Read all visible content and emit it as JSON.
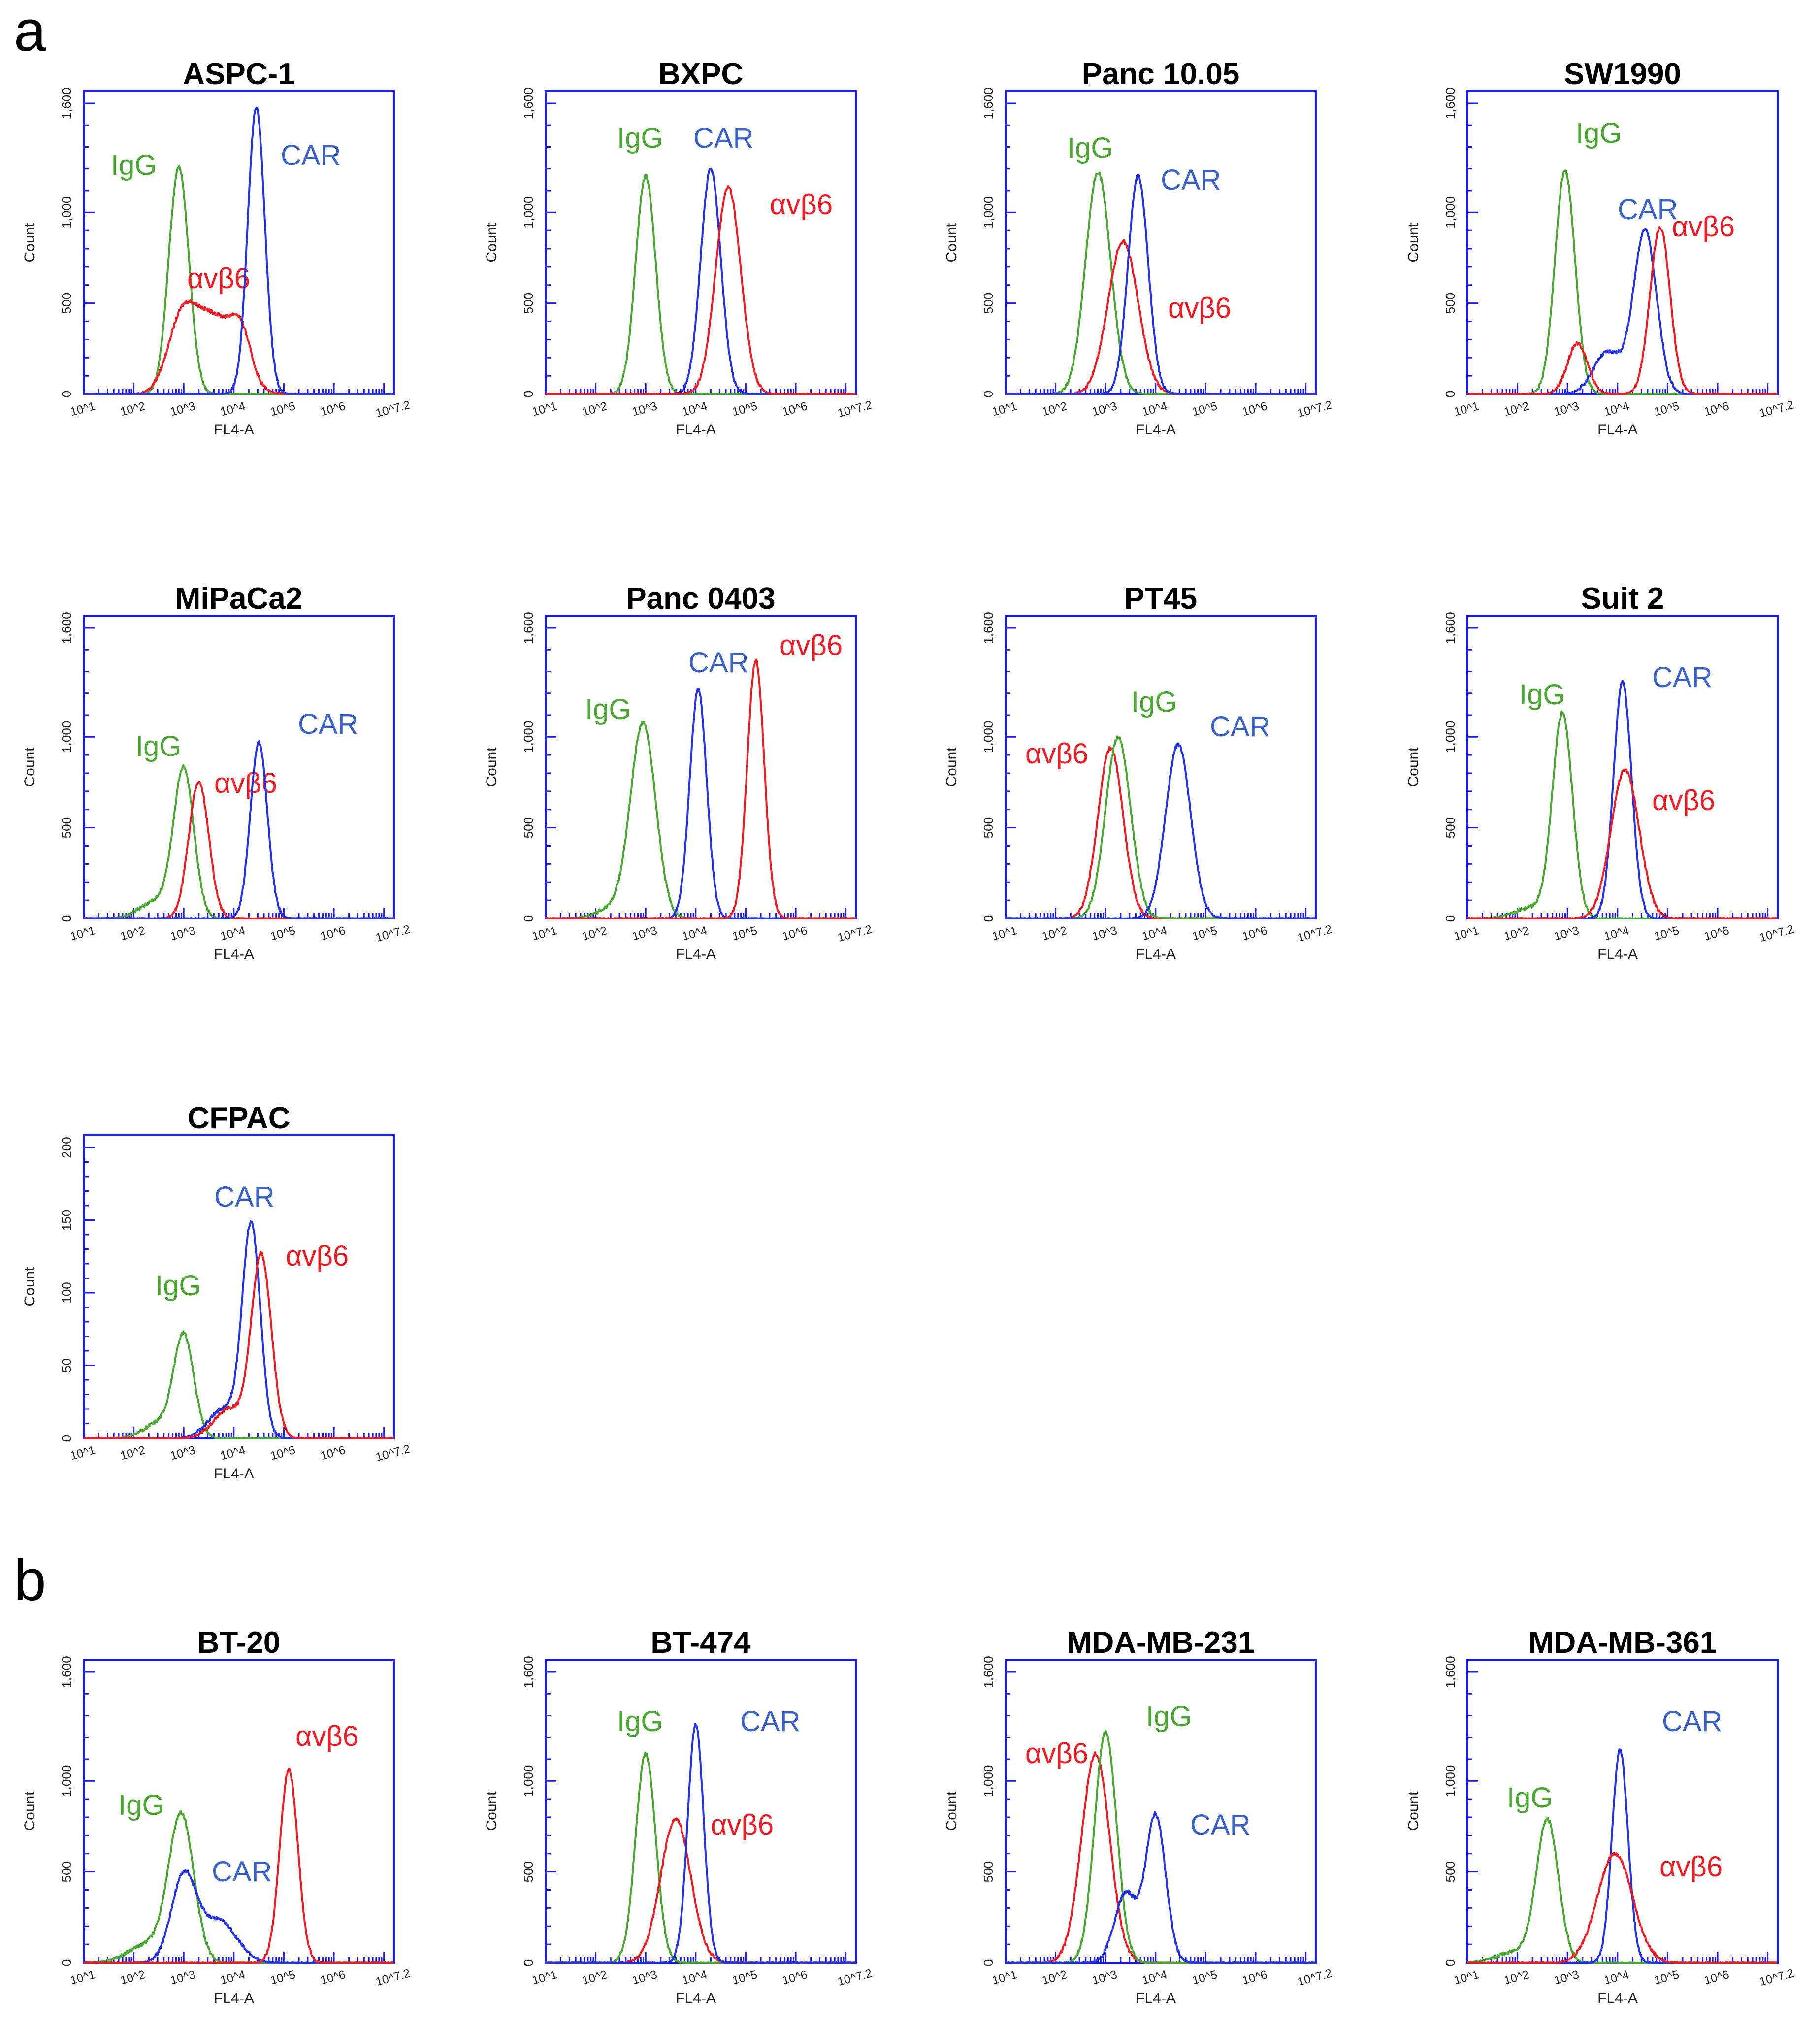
{
  "panels": [
    {
      "key": "a",
      "label": "a"
    },
    {
      "key": "b",
      "label": "b"
    }
  ],
  "colors": {
    "IgG": "#4aa832",
    "CAR": "#2433e6",
    "avb6": "#ee1c24",
    "CAR_label": "#3a62c8",
    "frame": "#1a1aff"
  },
  "chart_data": [
    {
      "type": "line",
      "panel": "a",
      "title": "ASPC-1",
      "xlabel": "FL4-A",
      "ylabel": "Count",
      "xticks": [
        "10^1",
        "10^2",
        "10^3",
        "10^4",
        "10^5",
        "10^6",
        "10^7.2"
      ],
      "xlim": [
        1,
        7.2
      ],
      "yticks": [
        "0",
        "500",
        "1,000",
        "1,600"
      ],
      "ylim": [
        0,
        1600
      ],
      "series": [
        {
          "name": "IgG",
          "label": "IgG",
          "components": [
            [
              2.9,
              1250,
              0.2
            ]
          ]
        },
        {
          "name": "avb6",
          "label": "αvβ6",
          "components": [
            [
              2.95,
              350,
              0.28
            ],
            [
              3.6,
              420,
              0.42
            ],
            [
              4.15,
              230,
              0.2
            ]
          ]
        },
        {
          "name": "CAR",
          "label": "CAR",
          "components": [
            [
              4.45,
              1580,
              0.17
            ]
          ]
        }
      ]
    },
    {
      "type": "line",
      "panel": "a",
      "title": "BXPC",
      "xlabel": "FL4-A",
      "ylabel": "Count",
      "xticks": [
        "10^1",
        "10^2",
        "10^3",
        "10^4",
        "10^5",
        "10^6",
        "10^7.2"
      ],
      "xlim": [
        1,
        7.2
      ],
      "yticks": [
        "0",
        "500",
        "1,000",
        "1,600"
      ],
      "ylim": [
        0,
        1600
      ],
      "series": [
        {
          "name": "IgG",
          "label": "IgG",
          "components": [
            [
              3.0,
              1200,
              0.2
            ]
          ]
        },
        {
          "name": "CAR",
          "label": "CAR",
          "components": [
            [
              4.3,
              1240,
              0.2
            ]
          ]
        },
        {
          "name": "avb6",
          "label": "αvβ6",
          "components": [
            [
              4.65,
              1140,
              0.25
            ]
          ]
        }
      ]
    },
    {
      "type": "line",
      "panel": "a",
      "title": "Panc 10.05",
      "xlabel": "FL4-A",
      "ylabel": "Count",
      "xticks": [
        "10^1",
        "10^2",
        "10^3",
        "10^4",
        "10^5",
        "10^6",
        "10^7.2"
      ],
      "xlim": [
        1,
        7.2
      ],
      "yticks": [
        "0",
        "500",
        "1,000",
        "1,600"
      ],
      "ylim": [
        0,
        1600
      ],
      "series": [
        {
          "name": "IgG",
          "label": "IgG",
          "components": [
            [
              2.85,
              1220,
              0.25
            ]
          ]
        },
        {
          "name": "avb6",
          "label": "αvβ6",
          "components": [
            [
              3.35,
              840,
              0.3
            ]
          ]
        },
        {
          "name": "CAR",
          "label": "CAR",
          "components": [
            [
              3.65,
              1200,
              0.2
            ]
          ]
        }
      ]
    },
    {
      "type": "line",
      "panel": "a",
      "title": "SW1990",
      "xlabel": "FL4-A",
      "ylabel": "Count",
      "xticks": [
        "10^1",
        "10^2",
        "10^3",
        "10^4",
        "10^5",
        "10^6",
        "10^7.2"
      ],
      "xlim": [
        1,
        7.2
      ],
      "yticks": [
        "0",
        "500",
        "1,000",
        "1,600"
      ],
      "ylim": [
        0,
        1600
      ],
      "series": [
        {
          "name": "IgG",
          "label": "IgG",
          "components": [
            [
              2.95,
              1230,
              0.2
            ]
          ]
        },
        {
          "name": "CAR",
          "label": "CAR",
          "components": [
            [
              4.55,
              900,
              0.23
            ],
            [
              3.8,
              230,
              0.28
            ]
          ]
        },
        {
          "name": "avb6",
          "label": "αvβ6",
          "components": [
            [
              4.85,
              920,
              0.2
            ],
            [
              3.2,
              280,
              0.2
            ]
          ]
        }
      ]
    },
    {
      "type": "line",
      "panel": "a",
      "title": "MiPaCa2",
      "xlabel": "FL4-A",
      "ylabel": "Count",
      "xticks": [
        "10^1",
        "10^2",
        "10^3",
        "10^4",
        "10^5",
        "10^6",
        "10^7.2"
      ],
      "xlim": [
        1,
        7.2
      ],
      "yticks": [
        "0",
        "500",
        "1,000",
        "1,600"
      ],
      "ylim": [
        0,
        1600
      ],
      "series": [
        {
          "name": "IgG",
          "label": "IgG",
          "components": [
            [
              3.0,
              800,
              0.2
            ],
            [
              2.5,
              100,
              0.35
            ]
          ]
        },
        {
          "name": "avb6",
          "label": "αvβ6",
          "components": [
            [
              3.3,
              750,
              0.2
            ]
          ]
        },
        {
          "name": "CAR",
          "label": "CAR",
          "components": [
            [
              4.5,
              970,
              0.17
            ]
          ]
        }
      ]
    },
    {
      "type": "line",
      "panel": "a",
      "title": "Panc 0403",
      "xlabel": "FL4-A",
      "ylabel": "Count",
      "xticks": [
        "10^1",
        "10^2",
        "10^3",
        "10^4",
        "10^5",
        "10^6",
        "10^7.2"
      ],
      "xlim": [
        1,
        7.2
      ],
      "yticks": [
        "0",
        "500",
        "1,000",
        "1,600"
      ],
      "ylim": [
        0,
        1600
      ],
      "series": [
        {
          "name": "IgG",
          "label": "IgG",
          "components": [
            [
              2.95,
              1060,
              0.25
            ],
            [
              2.4,
              60,
              0.35
            ]
          ]
        },
        {
          "name": "CAR",
          "label": "CAR",
          "components": [
            [
              4.05,
              1260,
              0.17
            ]
          ]
        },
        {
          "name": "avb6",
          "label": "αvβ6",
          "components": [
            [
              5.2,
              1420,
              0.17
            ]
          ]
        }
      ]
    },
    {
      "type": "line",
      "panel": "a",
      "title": "PT45",
      "xlabel": "FL4-A",
      "ylabel": "Count",
      "xticks": [
        "10^1",
        "10^2",
        "10^3",
        "10^4",
        "10^5",
        "10^6",
        "10^7.2"
      ],
      "xlim": [
        1,
        7.2
      ],
      "yticks": [
        "0",
        "500",
        "1,000",
        "1,600"
      ],
      "ylim": [
        0,
        1600
      ],
      "series": [
        {
          "name": "avb6",
          "label": "αvβ6",
          "components": [
            [
              3.1,
              940,
              0.25
            ]
          ]
        },
        {
          "name": "IgG",
          "label": "IgG",
          "components": [
            [
              3.25,
              1000,
              0.25
            ]
          ]
        },
        {
          "name": "CAR",
          "label": "CAR",
          "components": [
            [
              4.45,
              960,
              0.25
            ]
          ]
        }
      ]
    },
    {
      "type": "line",
      "panel": "a",
      "title": "Suit 2",
      "xlabel": "FL4-A",
      "ylabel": "Count",
      "xticks": [
        "10^1",
        "10^2",
        "10^3",
        "10^4",
        "10^5",
        "10^6",
        "10^7.2"
      ],
      "xlim": [
        1,
        7.2
      ],
      "yticks": [
        "0",
        "500",
        "1,000",
        "1,600"
      ],
      "ylim": [
        0,
        1600
      ],
      "series": [
        {
          "name": "IgG",
          "label": "IgG",
          "components": [
            [
              2.9,
              1120,
              0.2
            ],
            [
              2.3,
              60,
              0.35
            ]
          ]
        },
        {
          "name": "CAR",
          "label": "CAR",
          "components": [
            [
              4.1,
              1300,
              0.18
            ]
          ]
        },
        {
          "name": "avb6",
          "label": "αvβ6",
          "components": [
            [
              4.15,
              820,
              0.28
            ]
          ]
        }
      ]
    },
    {
      "type": "line",
      "panel": "a",
      "title": "CFPAC",
      "xlabel": "FL4-A",
      "ylabel": "Count",
      "xticks": [
        "10^1",
        "10^2",
        "10^3",
        "10^4",
        "10^5",
        "10^6",
        "10^7.2"
      ],
      "xlim": [
        1,
        7.2
      ],
      "yticks": [
        "0",
        "50",
        "100",
        "150",
        "200"
      ],
      "ylim": [
        0,
        200
      ],
      "series": [
        {
          "name": "IgG",
          "label": "IgG",
          "components": [
            [
              3.0,
              70,
              0.2
            ],
            [
              2.5,
              10,
              0.3
            ]
          ]
        },
        {
          "name": "CAR",
          "label": "CAR",
          "components": [
            [
              4.35,
              145,
              0.18
            ],
            [
              3.8,
              20,
              0.3
            ]
          ]
        },
        {
          "name": "avb6",
          "label": "αvβ6",
          "components": [
            [
              4.55,
              125,
              0.2
            ],
            [
              3.9,
              20,
              0.3
            ]
          ]
        }
      ]
    },
    {
      "type": "line",
      "panel": "b",
      "title": "BT-20",
      "xlabel": "FL4-A",
      "ylabel": "Count",
      "xticks": [
        "10^1",
        "10^2",
        "10^3",
        "10^4",
        "10^5",
        "10^6",
        "10^7.2"
      ],
      "xlim": [
        1,
        7.2
      ],
      "yticks": [
        "0",
        "500",
        "1,000",
        "1,600"
      ],
      "ylim": [
        0,
        1600
      ],
      "series": [
        {
          "name": "IgG",
          "label": "IgG",
          "components": [
            [
              2.95,
              800,
              0.25
            ],
            [
              2.3,
              100,
              0.4
            ]
          ]
        },
        {
          "name": "CAR",
          "label": "CAR",
          "components": [
            [
              3.0,
              470,
              0.25
            ],
            [
              3.7,
              230,
              0.35
            ]
          ]
        },
        {
          "name": "avb6",
          "label": "αvβ6",
          "components": [
            [
              5.1,
              1060,
              0.18
            ]
          ]
        }
      ]
    },
    {
      "type": "line",
      "panel": "b",
      "title": "BT-474",
      "xlabel": "FL4-A",
      "ylabel": "Count",
      "xticks": [
        "10^1",
        "10^2",
        "10^3",
        "10^4",
        "10^5",
        "10^6",
        "10^7.2"
      ],
      "xlim": [
        1,
        7.2
      ],
      "yticks": [
        "0",
        "500",
        "1,000",
        "1,600"
      ],
      "ylim": [
        0,
        1600
      ],
      "series": [
        {
          "name": "IgG",
          "label": "IgG",
          "components": [
            [
              3.0,
              1150,
              0.2
            ]
          ]
        },
        {
          "name": "avb6",
          "label": "αvβ6",
          "components": [
            [
              3.6,
              790,
              0.3
            ]
          ]
        },
        {
          "name": "CAR",
          "label": "CAR",
          "components": [
            [
              4.0,
              1310,
              0.16
            ]
          ]
        }
      ]
    },
    {
      "type": "line",
      "panel": "b",
      "title": "MDA-MB-231",
      "xlabel": "FL4-A",
      "ylabel": "Count",
      "xticks": [
        "10^1",
        "10^2",
        "10^3",
        "10^4",
        "10^5",
        "10^6",
        "10^7.2"
      ],
      "xlim": [
        1,
        7.2
      ],
      "yticks": [
        "0",
        "500",
        "1,000",
        "1,600"
      ],
      "ylim": [
        0,
        1600
      ],
      "series": [
        {
          "name": "avb6",
          "label": "αvβ6",
          "components": [
            [
              2.8,
              1150,
              0.28
            ]
          ]
        },
        {
          "name": "IgG",
          "label": "IgG",
          "components": [
            [
              3.0,
              1270,
              0.22
            ]
          ]
        },
        {
          "name": "CAR",
          "label": "CAR",
          "components": [
            [
              4.0,
              810,
              0.2
            ],
            [
              3.4,
              380,
              0.22
            ]
          ]
        }
      ]
    },
    {
      "type": "line",
      "panel": "b",
      "title": "MDA-MB-361",
      "xlabel": "FL4-A",
      "ylabel": "Count",
      "xticks": [
        "10^1",
        "10^2",
        "10^3",
        "10^4",
        "10^5",
        "10^6",
        "10^7.2"
      ],
      "xlim": [
        1,
        7.2
      ],
      "yticks": [
        "0",
        "500",
        "1,000",
        "1,600"
      ],
      "ylim": [
        0,
        1600
      ],
      "series": [
        {
          "name": "IgG",
          "label": "IgG",
          "components": [
            [
              2.6,
              770,
              0.22
            ],
            [
              2.0,
              60,
              0.4
            ]
          ]
        },
        {
          "name": "CAR",
          "label": "CAR",
          "components": [
            [
              4.05,
              1170,
              0.16
            ]
          ]
        },
        {
          "name": "avb6",
          "label": "αvβ6",
          "components": [
            [
              3.95,
              600,
              0.35
            ]
          ]
        }
      ]
    }
  ]
}
